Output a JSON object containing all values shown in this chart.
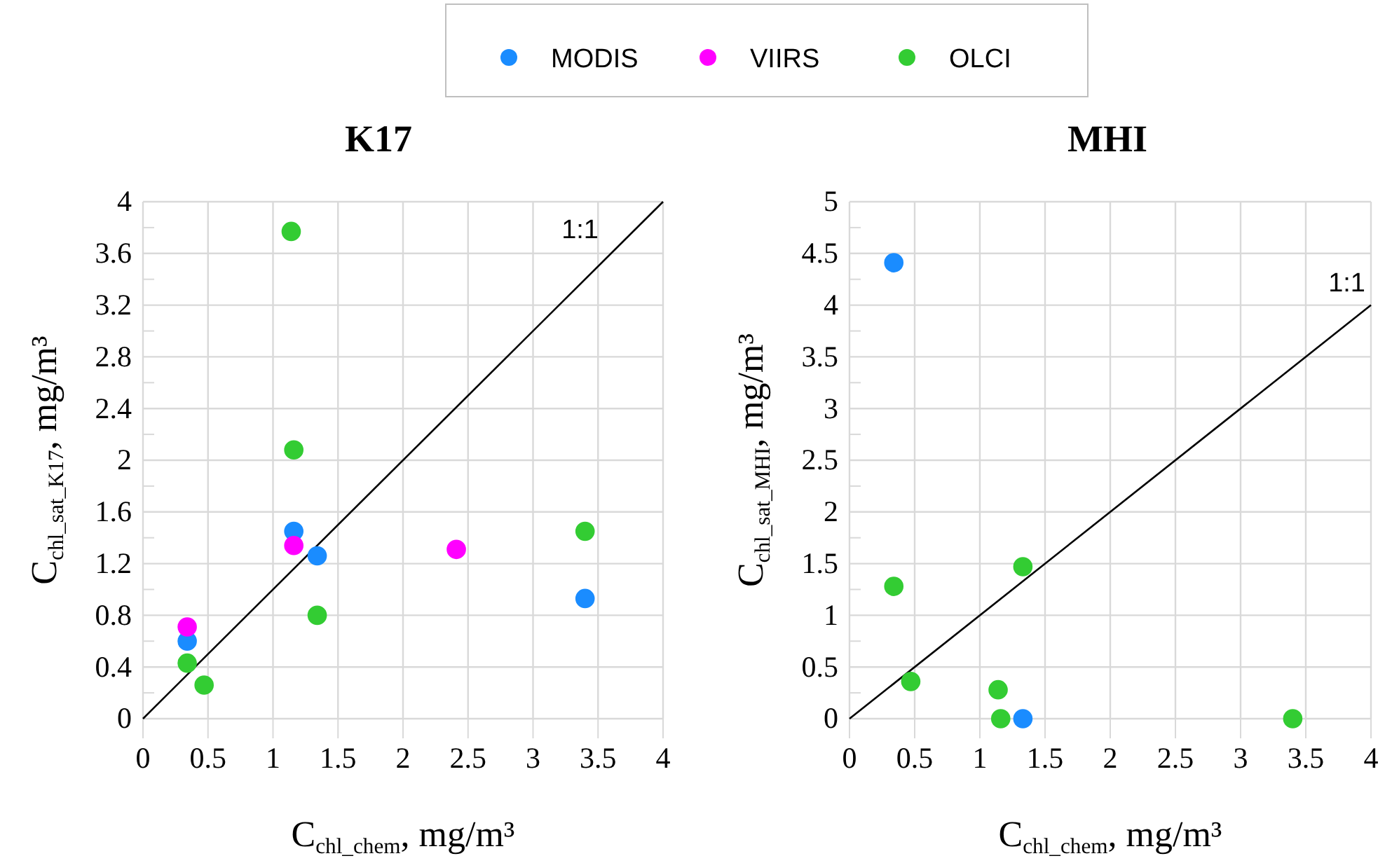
{
  "chart_data": [
    {
      "type": "scatter",
      "title": "K17",
      "xlabel": "C$_{chl_chem}$, mg/m³",
      "ylabel": "C$_{chl_sat_K17}$, mg/m³",
      "xlim": [
        0,
        4
      ],
      "ylim": [
        0,
        4
      ],
      "xticks": [
        0,
        0.5,
        1,
        1.5,
        2,
        2.5,
        3,
        3.5,
        4
      ],
      "yticks": [
        0,
        {
          "value": 0.2,
          "label": null
        },
        0.4,
        {
          "value": 0.6,
          "label": null
        },
        0.8,
        {
          "value": 1.0,
          "label": null
        },
        1.2,
        {
          "value": 1.4,
          "label": null
        },
        1.6,
        {
          "value": 1.8,
          "label": null
        },
        2,
        {
          "value": 2.2,
          "label": null
        },
        2.4,
        {
          "value": 2.6,
          "label": null
        },
        2.8,
        {
          "value": 3.0,
          "label": null
        },
        3.2,
        {
          "value": 3.4,
          "label": null
        },
        3.6,
        {
          "value": 3.8,
          "label": null
        },
        4
      ],
      "grid": true,
      "legend": "top",
      "series": [
        {
          "name": "MODIS",
          "color": "#1a8cff",
          "marker": "circle",
          "x": [
            0.34,
            1.16,
            1.34,
            3.4
          ],
          "values": [
            0.6,
            1.45,
            1.26,
            0.93
          ]
        },
        {
          "name": "VIIRS",
          "color": "#ff00ff",
          "marker": "circle",
          "x": [
            0.34,
            1.16,
            2.41
          ],
          "values": [
            0.71,
            1.34,
            1.31
          ]
        },
        {
          "name": "OLCI",
          "color": "#33cc33",
          "marker": "circle",
          "x": [
            1.14,
            1.16,
            0.34,
            0.47,
            1.34,
            3.4
          ],
          "values": [
            3.77,
            2.08,
            0.43,
            0.26,
            0.8,
            1.45
          ]
        },
        {
          "type": "line",
          "color": "#000000",
          "x": [
            0,
            4
          ],
          "values": [
            0,
            4
          ]
        }
      ],
      "annotations": [
        "1:1"
      ]
    },
    {
      "type": "scatter",
      "title": "MHI",
      "xlabel": "C$_{chl_chem}$, mg/m³",
      "ylabel": "C$_{chl_sat_MHI}$, mg/m³",
      "xlim": [
        0,
        4
      ],
      "ylim": [
        0,
        5
      ],
      "xticks": [
        0,
        0.5,
        1,
        1.5,
        2,
        2.5,
        3,
        3.5,
        4
      ],
      "yticks": [
        0,
        {
          "value": 0.25,
          "label": null
        },
        0.5,
        {
          "value": 0.75,
          "label": null
        },
        1,
        {
          "value": 1.25,
          "label": null
        },
        1.5,
        {
          "value": 1.75,
          "label": null
        },
        2,
        {
          "value": 2.25,
          "label": null
        },
        2.5,
        {
          "value": 2.75,
          "label": null
        },
        3,
        {
          "value": 3.25,
          "label": null
        },
        3.5,
        {
          "value": 3.75,
          "label": null
        },
        4,
        {
          "value": 4.25,
          "label": null
        },
        4.5,
        {
          "value": 4.75,
          "label": null
        },
        5
      ],
      "grid": true,
      "series": [
        {
          "color": "#1a8cff",
          "marker": "circle",
          "x": [
            0.34,
            1.33
          ],
          "values": [
            4.41,
            0
          ]
        },
        {
          "color": "#33cc33",
          "marker": "circle",
          "x": [
            0.34,
            1.33,
            0.47,
            1.14,
            1.16,
            3.4
          ],
          "values": [
            1.28,
            1.47,
            0.36,
            0.28,
            0,
            0
          ]
        },
        {
          "type": "line",
          "color": "#000000",
          "x": [
            0,
            4
          ],
          "values": [
            0,
            4
          ]
        }
      ],
      "annotations": [
        "1:1"
      ]
    }
  ]
}
